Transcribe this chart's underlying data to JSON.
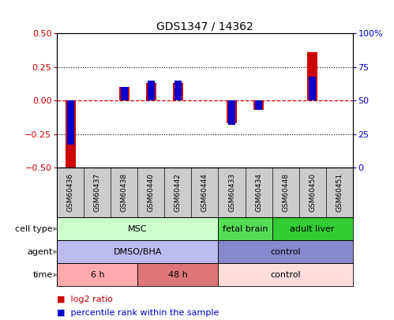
{
  "title": "GDS1347 / 14362",
  "samples": [
    "GSM60436",
    "GSM60437",
    "GSM60438",
    "GSM60440",
    "GSM60442",
    "GSM60444",
    "GSM60433",
    "GSM60434",
    "GSM60448",
    "GSM60450",
    "GSM60451"
  ],
  "log2_ratio": [
    -0.5,
    0.0,
    0.1,
    0.13,
    0.13,
    0.0,
    -0.17,
    -0.07,
    0.0,
    0.36,
    0.0
  ],
  "percentile_rank": [
    17,
    50,
    60,
    65,
    65,
    50,
    32,
    43,
    50,
    68,
    50
  ],
  "ylim_left": [
    -0.5,
    0.5
  ],
  "ylim_right": [
    0,
    100
  ],
  "yticks_left": [
    -0.5,
    -0.25,
    0,
    0.25,
    0.5
  ],
  "yticks_right": [
    0,
    25,
    50,
    75,
    100
  ],
  "ytick_labels_right": [
    "0",
    "25",
    "50",
    "75",
    "100%"
  ],
  "bar_color_red": "#cc0000",
  "bar_color_blue": "#0000cc",
  "hline_color": "#cc0000",
  "cell_type_groups": [
    {
      "label": "MSC",
      "start": 0,
      "end": 5,
      "color": "#ccffcc"
    },
    {
      "label": "fetal brain",
      "start": 6,
      "end": 7,
      "color": "#55dd55"
    },
    {
      "label": "adult liver",
      "start": 8,
      "end": 10,
      "color": "#33cc33"
    }
  ],
  "agent_groups": [
    {
      "label": "DMSO/BHA",
      "start": 0,
      "end": 5,
      "color": "#bbbbee"
    },
    {
      "label": "control",
      "start": 6,
      "end": 10,
      "color": "#8888cc"
    }
  ],
  "time_groups": [
    {
      "label": "6 h",
      "start": 0,
      "end": 2,
      "color": "#ffaaaa"
    },
    {
      "label": "48 h",
      "start": 3,
      "end": 5,
      "color": "#dd7777"
    },
    {
      "label": "control",
      "start": 6,
      "end": 10,
      "color": "#ffdddd"
    }
  ],
  "row_labels": [
    "cell type",
    "agent",
    "time"
  ],
  "legend_entries": [
    "log2 ratio",
    "percentile rank within the sample"
  ],
  "legend_colors": [
    "#cc0000",
    "#0000cc"
  ],
  "sample_bg": "#cccccc",
  "spine_color": "black"
}
